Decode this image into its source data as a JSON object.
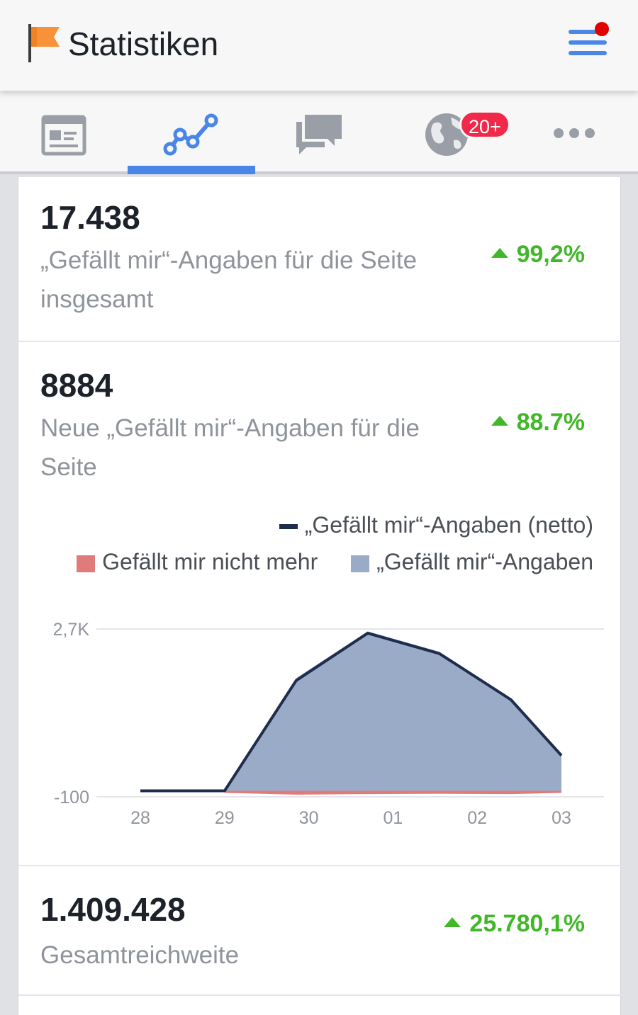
{
  "header": {
    "title": "Statistiken",
    "icons": {
      "flag": "flag-icon",
      "menu": "hamburger-menu-icon"
    },
    "colors": {
      "flag": "#f7923b",
      "menu": "#4a86e8",
      "notification_dot": "#e00000"
    }
  },
  "tabs": [
    {
      "name": "page-tab",
      "icon": "page-icon",
      "active": false
    },
    {
      "name": "insights-tab",
      "icon": "line-chart-icon",
      "active": true
    },
    {
      "name": "messages-tab",
      "icon": "chat-bubbles-icon",
      "active": false
    },
    {
      "name": "notifications-tab",
      "icon": "globe-icon",
      "active": false,
      "badge": "20+"
    },
    {
      "name": "more-tab",
      "icon": "more-dots-icon",
      "active": false
    }
  ],
  "metrics": [
    {
      "value": "17.438",
      "label": "„Gefällt mir“-Angaben für die Seite insgesamt",
      "change": "99,2%",
      "trend": "up"
    },
    {
      "value": "8884",
      "label": "Neue „Gefällt mir“-Angaben für die Seite",
      "change": "88.7%",
      "trend": "up"
    },
    {
      "value": "1.409.428",
      "label": "Gesamtreichweite",
      "change": "25.780,1%",
      "trend": "up"
    }
  ],
  "colors": {
    "positive": "#42b72a",
    "accent": "#4a86e8",
    "text": "#1d2129",
    "muted": "#8f949b"
  },
  "chart_data": {
    "type": "area",
    "legend": {
      "net": "„Gefällt mir“-Angaben (netto)",
      "unlikes": "Gefällt mir nicht mehr",
      "likes": "„Gefällt mir“-Angaben"
    },
    "legend_position": "top-right",
    "y_tick_labels": [
      "2,7K",
      "-100"
    ],
    "ylim": [
      -100,
      2700
    ],
    "x_tick_labels": [
      "28",
      "29",
      "30",
      "01",
      "02",
      "03"
    ],
    "x": [
      0,
      1,
      1.85,
      2.7,
      3.55,
      4.4,
      5
    ],
    "series": [
      {
        "name": "„Gefällt mir“-Angaben",
        "values": [
          0,
          0,
          1880,
          2660,
          2320,
          1550,
          600
        ],
        "color": "#9aabc8"
      },
      {
        "name": "Gefällt mir nicht mehr",
        "values": [
          0,
          -10,
          -40,
          -30,
          -25,
          -30,
          -10
        ],
        "color": "#e07b7b"
      },
      {
        "name": "„Gefällt mir“-Angaben (netto)",
        "values": [
          0,
          0,
          1840,
          2630,
          2290,
          1520,
          590
        ],
        "color": "#1f2d4d"
      }
    ],
    "grid": true
  }
}
